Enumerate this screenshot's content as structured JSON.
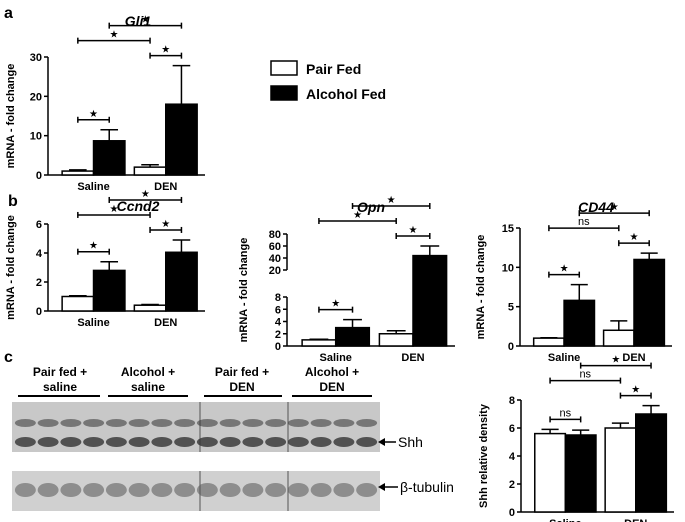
{
  "panel_labels": {
    "a": "a",
    "b": "b",
    "c": "c"
  },
  "legend": {
    "pair_fed": "Pair Fed",
    "alcohol_fed": "Alcohol Fed"
  },
  "colors": {
    "pair_fed": "#ffffff",
    "alcohol_fed": "#000000"
  },
  "blot": {
    "group_labels": [
      {
        "line1": "Pair fed +",
        "line2": "saline"
      },
      {
        "line1": "Alcohol +",
        "line2": "saline"
      },
      {
        "line1": "Pair fed +",
        "line2": "DEN"
      },
      {
        "line1": "Alcohol +",
        "line2": "DEN"
      }
    ],
    "band_labels": [
      "Shh",
      "β-tubulin"
    ]
  },
  "chart_data": [
    {
      "id": "gli1",
      "type": "bar",
      "title": "Gli1",
      "ylabel": "mRNA - fold change",
      "xlabel": "",
      "categories": [
        "Saline",
        "DEN"
      ],
      "ylim": [
        0,
        30
      ],
      "yticks": [
        "0",
        "10",
        "20",
        "30"
      ],
      "series": [
        {
          "name": "Pair Fed",
          "values": [
            1.0,
            2.0
          ],
          "errors": [
            0.3,
            0.6
          ]
        },
        {
          "name": "Alcohol Fed",
          "values": [
            8.7,
            18.0
          ],
          "errors": [
            2.8,
            9.8
          ]
        }
      ],
      "annotations": [
        {
          "from": [
            0,
            0
          ],
          "to": [
            0,
            1
          ],
          "label": "★"
        },
        {
          "from": [
            0,
            0
          ],
          "to": [
            1,
            0
          ],
          "label": "★"
        },
        {
          "from": [
            1,
            0
          ],
          "to": [
            1,
            1
          ],
          "label": "★"
        },
        {
          "from": [
            0,
            1
          ],
          "to": [
            1,
            1
          ],
          "label": "★"
        }
      ]
    },
    {
      "id": "ccnd2",
      "type": "bar",
      "title": "Ccnd2",
      "ylabel": "mRNA - fold change",
      "xlabel": "",
      "categories": [
        "Saline",
        "DEN"
      ],
      "ylim": [
        0,
        6
      ],
      "yticks": [
        "0",
        "2",
        "4",
        "6"
      ],
      "series": [
        {
          "name": "Pair Fed",
          "values": [
            1.0,
            0.4
          ],
          "errors": [
            0.05,
            0.05
          ]
        },
        {
          "name": "Alcohol Fed",
          "values": [
            2.8,
            4.05
          ],
          "errors": [
            0.6,
            0.85
          ]
        }
      ],
      "annotations": [
        {
          "from": [
            0,
            0
          ],
          "to": [
            0,
            1
          ],
          "label": "★"
        },
        {
          "from": [
            0,
            0
          ],
          "to": [
            1,
            0
          ],
          "label": "★"
        },
        {
          "from": [
            1,
            0
          ],
          "to": [
            1,
            1
          ],
          "label": "★"
        },
        {
          "from": [
            0,
            1
          ],
          "to": [
            1,
            1
          ],
          "label": "★"
        }
      ]
    },
    {
      "id": "opn",
      "type": "bar",
      "title": "Opn",
      "ylabel": "mRNA - fold change",
      "xlabel": "",
      "categories": [
        "Saline",
        "DEN"
      ],
      "axis_break": {
        "lower": [
          0,
          8
        ],
        "upper": [
          20,
          80
        ]
      },
      "yticks_lower": [
        "0",
        "2",
        "4",
        "6",
        "8"
      ],
      "yticks_upper": [
        "20",
        "40",
        "60",
        "80"
      ],
      "series": [
        {
          "name": "Pair Fed",
          "values": [
            1.0,
            2.0
          ],
          "errors": [
            0.1,
            0.5
          ]
        },
        {
          "name": "Alcohol Fed",
          "values": [
            3.0,
            44
          ],
          "errors": [
            1.3,
            16
          ]
        }
      ],
      "annotations": [
        {
          "from": [
            0,
            0
          ],
          "to": [
            0,
            1
          ],
          "label": "★"
        },
        {
          "from": [
            0,
            0
          ],
          "to": [
            1,
            0
          ],
          "label": "★"
        },
        {
          "from": [
            1,
            0
          ],
          "to": [
            1,
            1
          ],
          "label": "★"
        },
        {
          "from": [
            0,
            1
          ],
          "to": [
            1,
            1
          ],
          "label": "★"
        }
      ]
    },
    {
      "id": "cd44",
      "type": "bar",
      "title": "CD44",
      "ylabel": "mRNA - fold change",
      "xlabel": "",
      "categories": [
        "Saline",
        "DEN"
      ],
      "ylim": [
        0,
        15
      ],
      "yticks": [
        "0",
        "5",
        "10",
        "15"
      ],
      "series": [
        {
          "name": "Pair Fed",
          "values": [
            1.0,
            2.0
          ],
          "errors": [
            0.05,
            1.2
          ]
        },
        {
          "name": "Alcohol Fed",
          "values": [
            5.8,
            11.0
          ],
          "errors": [
            2.0,
            0.8
          ]
        }
      ],
      "annotations": [
        {
          "from": [
            0,
            0
          ],
          "to": [
            0,
            1
          ],
          "label": "★"
        },
        {
          "from": [
            0,
            0
          ],
          "to": [
            1,
            0
          ],
          "label": "ns"
        },
        {
          "from": [
            1,
            0
          ],
          "to": [
            1,
            1
          ],
          "label": "★"
        },
        {
          "from": [
            0,
            1
          ],
          "to": [
            1,
            1
          ],
          "label": "★"
        }
      ]
    },
    {
      "id": "shh",
      "type": "bar",
      "title": "",
      "ylabel": "Shh relative density",
      "xlabel": "",
      "categories": [
        "Saline",
        "DEN"
      ],
      "ylim": [
        0,
        8
      ],
      "yticks": [
        "0",
        "2",
        "4",
        "6",
        "8"
      ],
      "series": [
        {
          "name": "Pair Fed",
          "values": [
            5.6,
            6.0
          ],
          "errors": [
            0.3,
            0.35
          ]
        },
        {
          "name": "Alcohol Fed",
          "values": [
            5.5,
            7.0
          ],
          "errors": [
            0.35,
            0.6
          ]
        }
      ],
      "annotations": [
        {
          "from": [
            0,
            0
          ],
          "to": [
            0,
            1
          ],
          "label": "ns"
        },
        {
          "from": [
            0,
            0
          ],
          "to": [
            1,
            0
          ],
          "label": "ns"
        },
        {
          "from": [
            1,
            0
          ],
          "to": [
            1,
            1
          ],
          "label": "★"
        },
        {
          "from": [
            0,
            1
          ],
          "to": [
            1,
            1
          ],
          "label": "★"
        }
      ]
    }
  ]
}
